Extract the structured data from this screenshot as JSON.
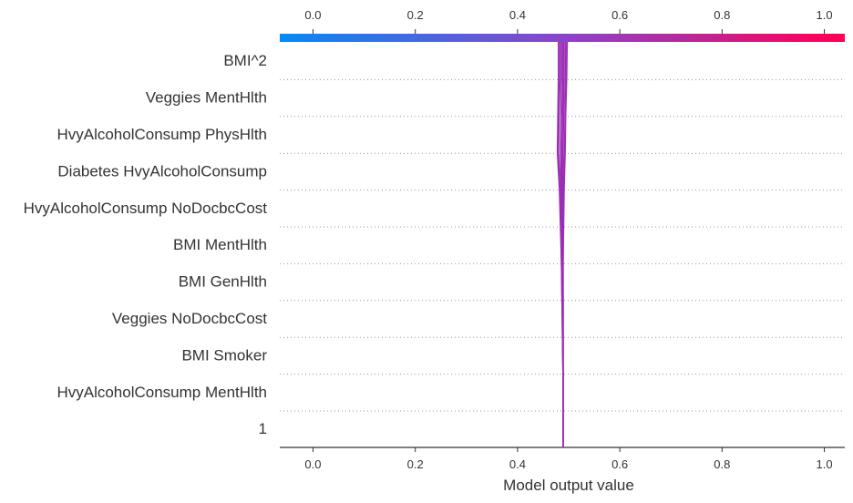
{
  "chart_data": {
    "type": "line",
    "plot_kind": "decision",
    "xlabel": "Model output value",
    "xlim": [
      -0.065,
      1.04
    ],
    "xticks": [
      0.0,
      0.2,
      0.4,
      0.6,
      0.8,
      1.0
    ],
    "xtick_labels": [
      "0.0",
      "0.2",
      "0.4",
      "0.6",
      "0.8",
      "1.0"
    ],
    "features": [
      "BMI^2",
      "Veggies MentHlth",
      "HvyAlcoholConsump PhysHlth",
      "Diabetes HvyAlcoholConsump",
      "HvyAlcoholConsump NoDocbcCost",
      "BMI MentHlth",
      "BMI GenHlth",
      "Veggies NoDocbcCost",
      "BMI Smoker",
      "HvyAlcoholConsump MentHlth",
      "1"
    ],
    "colorbar": {
      "min": 0.0,
      "max": 1.0,
      "colors": [
        "#008bfb",
        "#8c42d2",
        "#ff0052"
      ]
    },
    "series_color": "#9b2fb4",
    "series": [
      {
        "values": [
          0.48,
          0.48,
          0.479,
          0.478,
          0.482,
          0.484,
          0.486,
          0.487,
          0.488,
          0.489,
          0.489,
          0.489
        ]
      },
      {
        "values": [
          0.483,
          0.483,
          0.481,
          0.48,
          0.483,
          0.485,
          0.486,
          0.487,
          0.488,
          0.489,
          0.489,
          0.489
        ]
      },
      {
        "values": [
          0.486,
          0.486,
          0.485,
          0.484,
          0.485,
          0.486,
          0.487,
          0.488,
          0.488,
          0.489,
          0.489,
          0.489
        ]
      },
      {
        "values": [
          0.489,
          0.489,
          0.488,
          0.487,
          0.487,
          0.487,
          0.488,
          0.488,
          0.489,
          0.489,
          0.489,
          0.489
        ]
      },
      {
        "values": [
          0.491,
          0.491,
          0.49,
          0.489,
          0.488,
          0.488,
          0.488,
          0.489,
          0.489,
          0.489,
          0.489,
          0.489
        ]
      },
      {
        "values": [
          0.494,
          0.494,
          0.493,
          0.492,
          0.49,
          0.489,
          0.489,
          0.489,
          0.489,
          0.489,
          0.489,
          0.489
        ]
      },
      {
        "values": [
          0.497,
          0.496,
          0.494,
          0.493,
          0.491,
          0.49,
          0.489,
          0.489,
          0.489,
          0.489,
          0.489,
          0.489
        ]
      }
    ]
  }
}
